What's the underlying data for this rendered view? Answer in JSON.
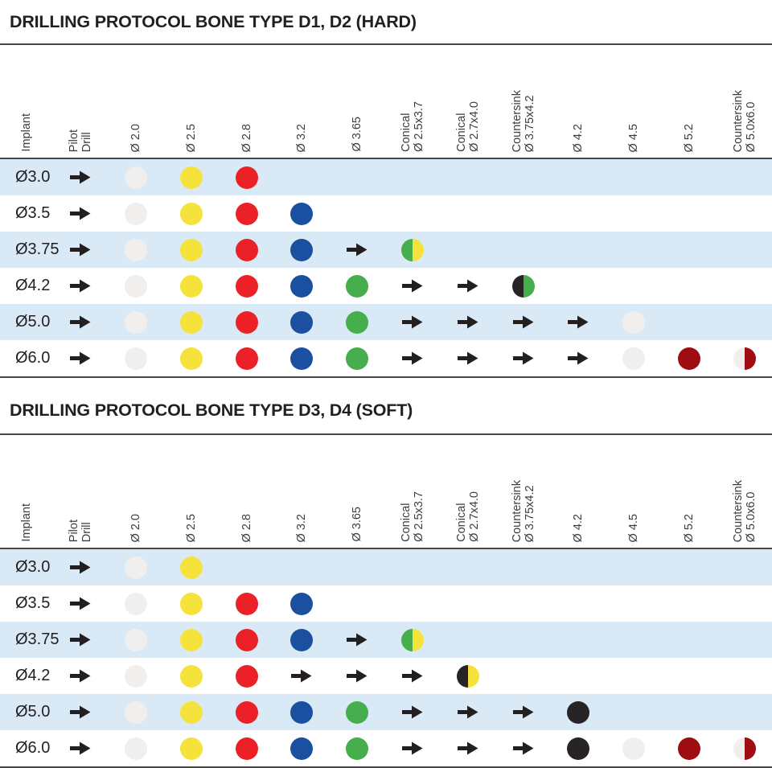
{
  "colors": {
    "stripe_blue": "#D9E9F6",
    "rule_line": "#454545",
    "title_text": "#231F20",
    "header_text": "#3D3D3D",
    "arrow_black": "#231F20",
    "dot_white": "#F1EFED",
    "dot_yellow": "#F5E33B",
    "dot_red": "#EC2127",
    "dot_blue": "#1B4FA0",
    "dot_green": "#46AE4D",
    "dot_black": "#282324",
    "dot_darkred": "#9E0D12"
  },
  "columns": [
    {
      "id": "implant",
      "label": "Implant"
    },
    {
      "id": "pilot-drill",
      "label": "Pilot\nDrill"
    },
    {
      "id": "d2-0",
      "label": "Ø 2.0"
    },
    {
      "id": "d2-5",
      "label": "Ø 2.5"
    },
    {
      "id": "d2-8",
      "label": "Ø 2.8"
    },
    {
      "id": "d3-2",
      "label": "Ø 3.2"
    },
    {
      "id": "d3-65",
      "label": "Ø 3.65"
    },
    {
      "id": "conical-2-5x3-7",
      "label": "Conical\nØ 2.5x3.7"
    },
    {
      "id": "conical-2-7x4-0",
      "label": "Conical\nØ 2.7x4.0"
    },
    {
      "id": "countersink-3-75x4-2",
      "label": "Countersink\nØ 3.75x4.2"
    },
    {
      "id": "d4-2",
      "label": "Ø 4.2"
    },
    {
      "id": "d4-5",
      "label": "Ø 4.5"
    },
    {
      "id": "d5-2",
      "label": "Ø 5.2"
    },
    {
      "id": "countersink-5-0x6-0",
      "label": "Countersink\nØ 5.0x6.0"
    }
  ],
  "tables": [
    {
      "title": "DRILLING PROTOCOL BONE TYPE D1, D2 (HARD)",
      "rows": [
        {
          "implant": "Ø3.0",
          "cells": [
            "arrow",
            "dot:white",
            "dot:yellow",
            "dot:red",
            "",
            "",
            "",
            "",
            "",
            "",
            "",
            "",
            ""
          ]
        },
        {
          "implant": "Ø3.5",
          "cells": [
            "arrow",
            "dot:white",
            "dot:yellow",
            "dot:red",
            "dot:blue",
            "",
            "",
            "",
            "",
            "",
            "",
            "",
            ""
          ]
        },
        {
          "implant": "Ø3.75",
          "cells": [
            "arrow",
            "dot:white",
            "dot:yellow",
            "dot:red",
            "dot:blue",
            "arrow",
            "half:green-yellow",
            "",
            "",
            "",
            "",
            "",
            ""
          ]
        },
        {
          "implant": "Ø4.2",
          "cells": [
            "arrow",
            "dot:white",
            "dot:yellow",
            "dot:red",
            "dot:blue",
            "dot:green",
            "arrow",
            "arrow",
            "half:black-green",
            "",
            "",
            "",
            ""
          ]
        },
        {
          "implant": "Ø5.0",
          "cells": [
            "arrow",
            "dot:white",
            "dot:yellow",
            "dot:red",
            "dot:blue",
            "dot:green",
            "arrow",
            "arrow",
            "arrow",
            "arrow",
            "dot:white",
            "",
            ""
          ]
        },
        {
          "implant": "Ø6.0",
          "cells": [
            "arrow",
            "dot:white",
            "dot:yellow",
            "dot:red",
            "dot:blue",
            "dot:green",
            "arrow",
            "arrow",
            "arrow",
            "arrow",
            "dot:white",
            "dot:darkred",
            "half:white-darkred"
          ]
        }
      ]
    },
    {
      "title": "DRILLING PROTOCOL BONE TYPE D3, D4 (SOFT)",
      "rows": [
        {
          "implant": "Ø3.0",
          "cells": [
            "arrow",
            "dot:white",
            "dot:yellow",
            "",
            "",
            "",
            "",
            "",
            "",
            "",
            "",
            "",
            ""
          ]
        },
        {
          "implant": "Ø3.5",
          "cells": [
            "arrow",
            "dot:white",
            "dot:yellow",
            "dot:red",
            "dot:blue",
            "",
            "",
            "",
            "",
            "",
            "",
            "",
            ""
          ]
        },
        {
          "implant": "Ø3.75",
          "cells": [
            "arrow",
            "dot:white",
            "dot:yellow",
            "dot:red",
            "dot:blue",
            "arrow",
            "half:green-yellow",
            "",
            "",
            "",
            "",
            "",
            ""
          ]
        },
        {
          "implant": "Ø4.2",
          "cells": [
            "arrow",
            "dot:white",
            "dot:yellow",
            "dot:red",
            "arrow",
            "arrow",
            "arrow",
            "half:black-yellow",
            "",
            "",
            "",
            "",
            ""
          ]
        },
        {
          "implant": "Ø5.0",
          "cells": [
            "arrow",
            "dot:white",
            "dot:yellow",
            "dot:red",
            "dot:blue",
            "dot:green",
            "arrow",
            "arrow",
            "arrow",
            "dot:black",
            "",
            "",
            ""
          ]
        },
        {
          "implant": "Ø6.0",
          "cells": [
            "arrow",
            "dot:white",
            "dot:yellow",
            "dot:red",
            "dot:blue",
            "dot:green",
            "arrow",
            "arrow",
            "arrow",
            "dot:black",
            "dot:white",
            "dot:darkred",
            "half:white-darkred"
          ]
        }
      ]
    }
  ]
}
